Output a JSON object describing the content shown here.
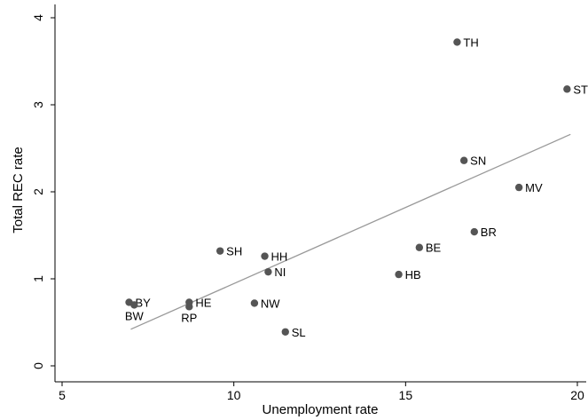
{
  "chart_data": {
    "type": "scatter",
    "xlabel": "Unemployment rate",
    "ylabel": "Total REC rate",
    "xlim": [
      5,
      20
    ],
    "ylim": [
      0,
      4
    ],
    "xticks": [
      5,
      10,
      15,
      20
    ],
    "yticks": [
      0,
      1,
      2,
      3,
      4
    ],
    "grid": false,
    "point_color": "#555555",
    "fit_line_color": "#999999",
    "points": [
      {
        "label": "TH",
        "x": 16.5,
        "y": 3.72
      },
      {
        "label": "ST",
        "x": 19.7,
        "y": 3.18
      },
      {
        "label": "SN",
        "x": 16.7,
        "y": 2.36
      },
      {
        "label": "MV",
        "x": 18.3,
        "y": 2.05
      },
      {
        "label": "BR",
        "x": 17.0,
        "y": 1.54
      },
      {
        "label": "BE",
        "x": 15.4,
        "y": 1.36
      },
      {
        "label": "HB",
        "x": 14.8,
        "y": 1.05
      },
      {
        "label": "SH",
        "x": 9.6,
        "y": 1.32
      },
      {
        "label": "HH",
        "x": 10.9,
        "y": 1.26
      },
      {
        "label": "NI",
        "x": 11.0,
        "y": 1.08
      },
      {
        "label": "NW",
        "x": 10.6,
        "y": 0.72
      },
      {
        "label": "SL",
        "x": 11.5,
        "y": 0.39
      },
      {
        "label": "HE",
        "x": 8.7,
        "y": 0.73
      },
      {
        "label": "RP",
        "x": 8.7,
        "y": 0.68
      },
      {
        "label": "BY",
        "x": 6.95,
        "y": 0.73
      },
      {
        "label": "BW",
        "x": 7.1,
        "y": 0.7
      }
    ],
    "fit_line": {
      "x": [
        7.0,
        19.8
      ],
      "y": [
        0.42,
        2.66
      ]
    }
  }
}
